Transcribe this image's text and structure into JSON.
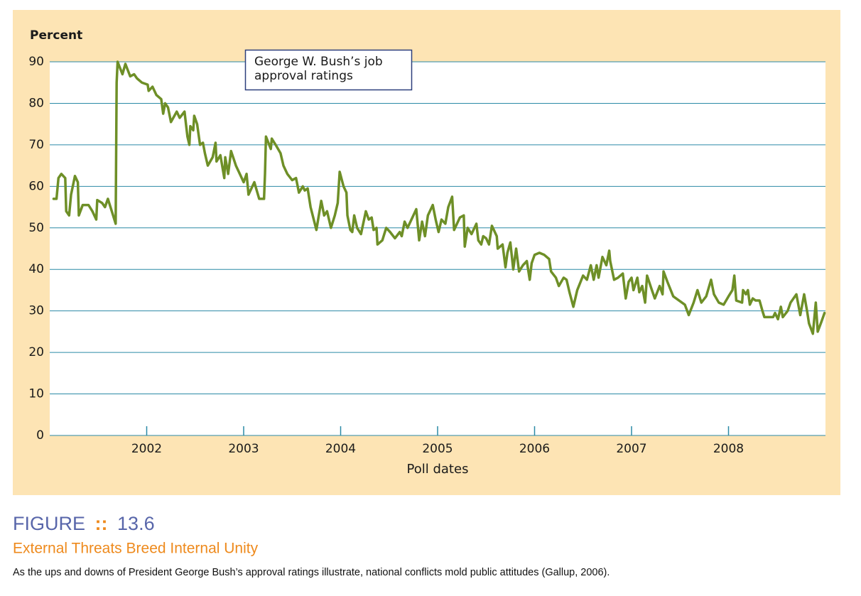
{
  "chart_data": {
    "type": "line",
    "annotation": [
      "George W. Bush’s job",
      "approval ratings"
    ],
    "y_label": "Percent",
    "x_label": "Poll dates",
    "color": "#6e8f27",
    "grid": true,
    "grid_color": "#2b8aa6",
    "xlim": [
      2001.0,
      2009.0
    ],
    "xticks": [
      2002,
      2003,
      2004,
      2005,
      2006,
      2007,
      2008
    ],
    "ylim": [
      0,
      90
    ],
    "yticks": [
      0,
      10,
      20,
      30,
      40,
      50,
      60,
      70,
      80,
      90
    ],
    "x": [
      2001.04,
      2001.07,
      2001.09,
      2001.12,
      2001.16,
      2001.17,
      2001.2,
      2001.22,
      2001.26,
      2001.29,
      2001.3,
      2001.34,
      2001.4,
      2001.44,
      2001.48,
      2001.49,
      2001.54,
      2001.57,
      2001.6,
      2001.64,
      2001.68,
      2001.69,
      2001.7,
      2001.75,
      2001.78,
      2001.83,
      2001.87,
      2001.9,
      2001.95,
      2002.01,
      2002.02,
      2002.06,
      2002.1,
      2002.15,
      2002.17,
      2002.19,
      2002.22,
      2002.25,
      2002.31,
      2002.34,
      2002.39,
      2002.42,
      2002.44,
      2002.45,
      2002.48,
      2002.49,
      2002.52,
      2002.55,
      2002.58,
      2002.6,
      2002.63,
      2002.68,
      2002.71,
      2002.72,
      2002.76,
      2002.8,
      2002.81,
      2002.84,
      2002.87,
      2002.92,
      2002.96,
      2003.0,
      2003.03,
      2003.05,
      2003.11,
      2003.16,
      2003.21,
      2003.22,
      2003.23,
      2003.28,
      2003.29,
      2003.33,
      2003.38,
      2003.41,
      2003.45,
      2003.5,
      2003.54,
      2003.57,
      2003.61,
      2003.63,
      2003.66,
      2003.69,
      2003.75,
      2003.8,
      2003.83,
      2003.86,
      2003.9,
      2003.94,
      2003.97,
      2003.99,
      2004.03,
      2004.06,
      2004.07,
      2004.1,
      2004.12,
      2004.14,
      2004.17,
      2004.21,
      2004.26,
      2004.29,
      2004.32,
      2004.34,
      2004.37,
      2004.38,
      2004.43,
      2004.47,
      2004.51,
      2004.56,
      2004.61,
      2004.63,
      2004.66,
      2004.69,
      2004.73,
      2004.78,
      2004.81,
      2004.84,
      2004.87,
      2004.9,
      2004.95,
      2004.98,
      2005.01,
      2005.04,
      2005.08,
      2005.11,
      2005.15,
      2005.17,
      2005.2,
      2005.23,
      2005.27,
      2005.28,
      2005.31,
      2005.35,
      2005.38,
      2005.4,
      2005.42,
      2005.45,
      2005.47,
      2005.5,
      2005.53,
      2005.56,
      2005.61,
      2005.62,
      2005.67,
      2005.7,
      2005.72,
      2005.75,
      2005.78,
      2005.81,
      2005.84,
      2005.88,
      2005.92,
      2005.95,
      2005.97,
      2006.0,
      2006.05,
      2006.1,
      2006.15,
      2006.17,
      2006.22,
      2006.25,
      2006.3,
      2006.33,
      2006.36,
      2006.4,
      2006.44,
      2006.5,
      2006.54,
      2006.58,
      2006.61,
      2006.64,
      2006.66,
      2006.7,
      2006.74,
      2006.77,
      2006.78,
      2006.82,
      2006.86,
      2006.91,
      2006.94,
      2006.97,
      2007.0,
      2007.02,
      2007.06,
      2007.08,
      2007.11,
      2007.14,
      2007.16,
      2007.21,
      2007.24,
      2007.29,
      2007.32,
      2007.33,
      2007.37,
      2007.43,
      2007.49,
      2007.55,
      2007.59,
      2007.64,
      2007.68,
      2007.72,
      2007.77,
      2007.82,
      2007.85,
      2007.9,
      2007.95,
      2008.0,
      2008.04,
      2008.06,
      2008.08,
      2008.14,
      2008.15,
      2008.18,
      2008.2,
      2008.22,
      2008.25,
      2008.28,
      2008.32,
      2008.35,
      2008.37,
      2008.42,
      2008.46,
      2008.48,
      2008.51,
      2008.54,
      2008.56,
      2008.61,
      2008.64,
      2008.67,
      2008.7,
      2008.74,
      2008.78,
      2008.81,
      2008.83,
      2008.87,
      2008.9,
      2008.92,
      2008.96,
      2008.99
    ],
    "values": [
      57,
      57,
      62,
      63,
      62,
      54,
      53,
      58,
      62.5,
      61,
      53,
      55.5,
      55.5,
      54,
      52,
      56.7,
      56,
      55,
      57,
      54,
      51,
      85,
      90,
      87,
      89.5,
      86.5,
      87,
      86,
      85,
      84.5,
      83,
      84,
      82,
      81,
      77.5,
      80,
      79,
      75.5,
      78,
      76.5,
      78,
      72,
      70,
      74.5,
      73.5,
      77,
      75,
      70,
      70.5,
      68,
      65,
      67,
      70.5,
      66,
      67.5,
      62,
      67,
      63,
      68.5,
      65,
      63,
      61,
      63,
      58,
      61,
      57,
      57,
      63,
      72,
      69,
      71.5,
      70,
      68,
      65,
      63,
      61.5,
      62,
      58.5,
      60,
      59,
      59.5,
      55,
      49.5,
      56.5,
      53,
      54,
      50,
      53,
      56,
      63.5,
      60,
      58.5,
      53,
      49.5,
      49,
      53,
      50,
      48.5,
      54,
      52,
      52.5,
      49.5,
      50,
      46,
      47,
      50,
      49,
      47.5,
      49,
      48,
      51.5,
      50,
      52,
      54.5,
      47,
      51.5,
      48,
      53,
      55.5,
      52,
      49,
      52,
      51,
      55,
      57.5,
      49.5,
      51,
      52.5,
      53,
      45.5,
      50,
      48.5,
      50,
      51,
      47,
      46,
      48,
      47.5,
      46,
      50.5,
      48,
      45,
      46,
      40.5,
      44,
      46.5,
      40,
      45,
      39.5,
      41,
      42,
      37.5,
      41.5,
      43.5,
      44,
      43.5,
      42.5,
      39.5,
      38,
      36,
      38,
      37.5,
      34.5,
      31,
      35,
      38.5,
      37.5,
      41,
      37.5,
      41,
      38,
      43,
      41,
      44.5,
      42,
      37.5,
      38,
      39,
      33,
      37,
      38,
      35,
      38,
      34.5,
      36,
      32,
      38.5,
      35,
      33,
      36,
      34,
      39.5,
      37,
      33.5,
      32.5,
      31.5,
      29,
      32,
      35,
      32,
      33.5,
      37.5,
      34,
      32,
      31.5,
      33.5,
      35,
      38.5,
      32.5,
      32,
      35,
      34,
      35,
      31.5,
      33,
      32.5,
      32.5,
      30,
      28.5,
      28.5,
      28.5,
      29.5,
      28,
      31,
      28.5,
      30,
      32,
      33,
      34,
      29,
      34,
      30,
      27,
      24.5,
      32,
      25,
      27.5,
      29.5
    ]
  },
  "figure": {
    "label": "FIGURE",
    "separator": "::",
    "number": "13.6",
    "title": "External Threats Breed Internal Unity",
    "caption": "As the ups and downs of President George Bush’s approval ratings illustrate, national conflicts mold public attitudes (Gallup, 2006)."
  }
}
